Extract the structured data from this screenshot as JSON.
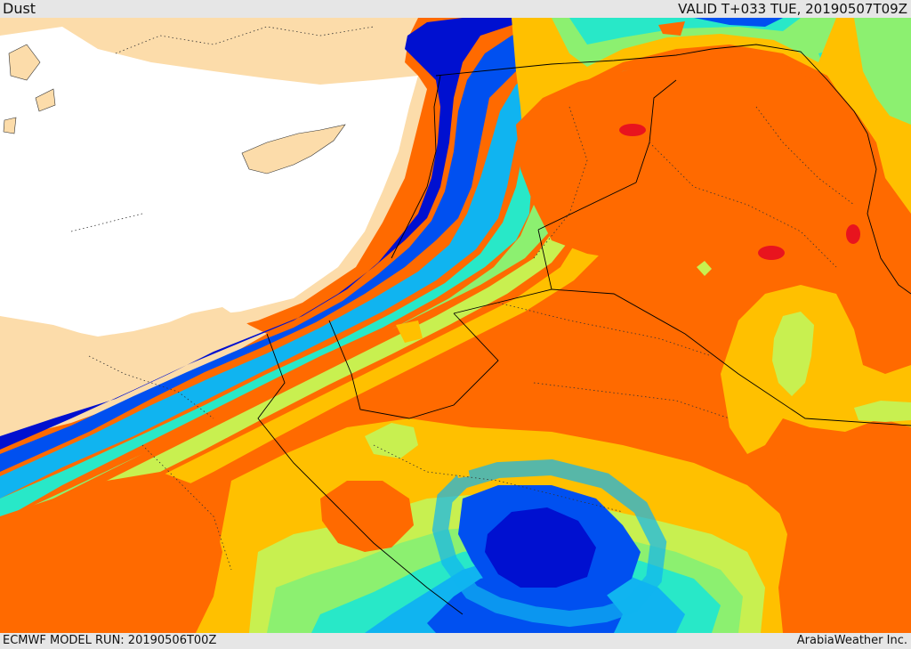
{
  "header": {
    "title": "Dust",
    "valid_time": "VALID T+033 TUE, 20190507T09Z"
  },
  "footer": {
    "model_run": "ECMWF MODEL RUN: 20190506T00Z",
    "credit": "ArabiaWeather Inc."
  },
  "colors": {
    "sea": "#ffffff",
    "land": "#fcdcaa",
    "very_high": "#e8141e",
    "high": "#ff6a00",
    "moderate": "#ffc000",
    "low": "#c8f050",
    "light": "#8cf070",
    "very_light": "#28e8c8",
    "clear_1": "#10b4f0",
    "clear_2": "#0050f0",
    "clear_3": "#0010d0"
  }
}
